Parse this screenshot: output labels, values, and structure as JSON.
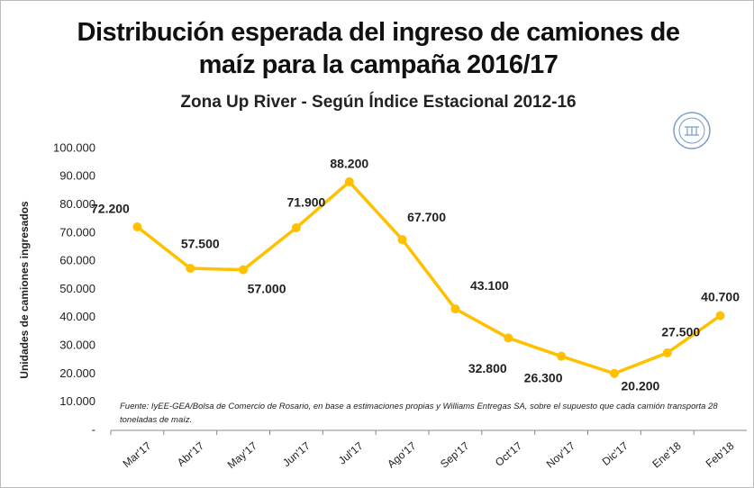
{
  "chart_data": {
    "type": "line",
    "title": "Distribución esperada del ingreso de camiones de maíz para la campaña 2016/17",
    "subtitle": "Zona Up River - Según Índice Estacional 2012-16",
    "ylabel": "Unidades de camiones ingresados",
    "annotation": "Fuente: IyEE-GEA/Bolsa de Comercio de Rosario, en base a estimaciones propias y Williams Entregas SA, sobre el supuesto que cada camión transporta 28 toneladas de maíz.",
    "categories": [
      "Mar'17",
      "Abr'17",
      "May'17",
      "Jun'17",
      "Jul'17",
      "Ago'17",
      "Sep'17",
      "Oct'17",
      "Nov'17",
      "Dic'17",
      "Ene'18",
      "Feb'18"
    ],
    "values": [
      72200,
      57500,
      57000,
      71900,
      88200,
      67700,
      43100,
      32800,
      26300,
      20200,
      27500,
      40700
    ],
    "value_labels": [
      "72.200",
      "57.500",
      "57.000",
      "71.900",
      "88.200",
      "67.700",
      "43.100",
      "32.800",
      "26.300",
      "20.200",
      "27.500",
      "40.700"
    ],
    "color": "#ffc000",
    "ylim": [
      0,
      100000
    ],
    "yticks": [
      {
        "value": 0,
        "label": "-"
      },
      {
        "value": 10000,
        "label": "10.000"
      },
      {
        "value": 20000,
        "label": "20.000"
      },
      {
        "value": 30000,
        "label": "30.000"
      },
      {
        "value": 40000,
        "label": "40.000"
      },
      {
        "value": 50000,
        "label": "50.000"
      },
      {
        "value": 60000,
        "label": "60.000"
      },
      {
        "value": 70000,
        "label": "70.000"
      },
      {
        "value": 80000,
        "label": "80.000"
      },
      {
        "value": 90000,
        "label": "90.000"
      },
      {
        "value": 100000,
        "label": "100.000"
      }
    ],
    "grid": false
  }
}
